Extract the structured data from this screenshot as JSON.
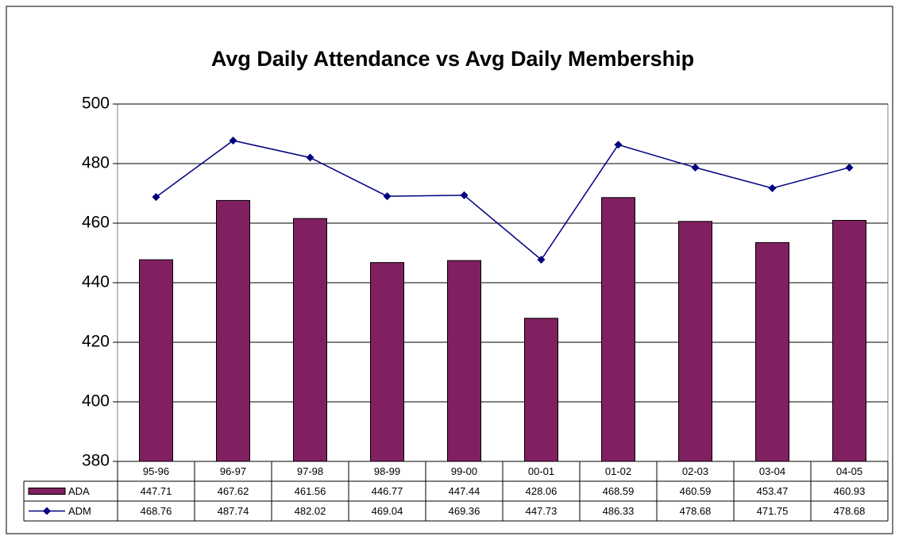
{
  "chart_data": {
    "type": "bar",
    "title": "Avg Daily Attendance vs Avg Daily Membership",
    "categories": [
      "95-96",
      "96-97",
      "97-98",
      "98-99",
      "99-00",
      "00-01",
      "01-02",
      "02-03",
      "03-04",
      "04-05"
    ],
    "series": [
      {
        "name": "ADA",
        "type": "bar",
        "color": "#802060",
        "values": [
          447.71,
          467.62,
          461.56,
          446.77,
          447.44,
          428.06,
          468.59,
          460.59,
          453.47,
          460.93
        ]
      },
      {
        "name": "ADM",
        "type": "line",
        "color": "#000080",
        "values": [
          468.76,
          487.74,
          482.02,
          469.04,
          469.36,
          447.73,
          486.33,
          478.68,
          471.75,
          478.68
        ]
      }
    ],
    "ylim": [
      380,
      500
    ],
    "yticks": [
      380,
      400,
      420,
      440,
      460,
      480,
      500
    ],
    "grid": true,
    "data_table": true
  }
}
